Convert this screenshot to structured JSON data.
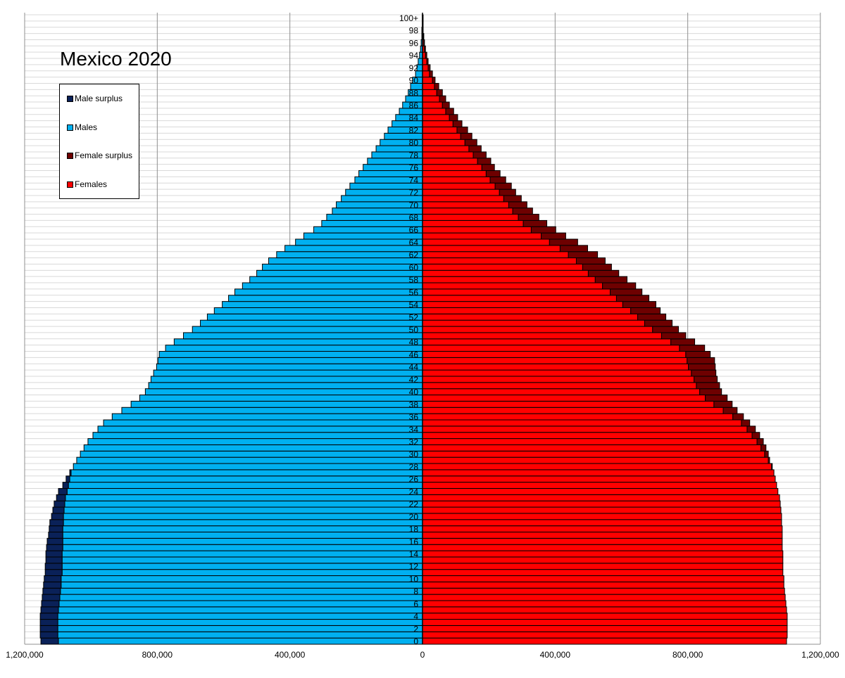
{
  "chart_data": {
    "type": "bar",
    "subtype": "population-pyramid",
    "title": "Mexico 2020",
    "age_labels_shown": [
      "0",
      "2",
      "4",
      "6",
      "8",
      "10",
      "12",
      "14",
      "16",
      "18",
      "20",
      "22",
      "24",
      "26",
      "28",
      "30",
      "32",
      "34",
      "36",
      "38",
      "40",
      "42",
      "44",
      "46",
      "48",
      "50",
      "52",
      "54",
      "56",
      "58",
      "60",
      "62",
      "64",
      "66",
      "68",
      "70",
      "72",
      "74",
      "76",
      "78",
      "80",
      "82",
      "84",
      "86",
      "88",
      "90",
      "92",
      "94",
      "96",
      "98",
      "100+"
    ],
    "x_ticks": [
      "1,200,000",
      "800,000",
      "400,000",
      "0",
      "400,000",
      "800,000",
      "1,200,000"
    ],
    "xlim": [
      -1200000,
      1200000
    ],
    "grid": true,
    "legend_position": "top-left",
    "legend": [
      {
        "label": "Male surplus",
        "color": "#0a2158"
      },
      {
        "label": "Males",
        "color": "#00b0f0"
      },
      {
        "label": "Female surplus",
        "color": "#6e0000"
      },
      {
        "label": "Females",
        "color": "#ff0000"
      }
    ],
    "ages": [
      0,
      1,
      2,
      3,
      4,
      5,
      6,
      7,
      8,
      9,
      10,
      11,
      12,
      13,
      14,
      15,
      16,
      17,
      18,
      19,
      20,
      21,
      22,
      23,
      24,
      25,
      26,
      27,
      28,
      29,
      30,
      31,
      32,
      33,
      34,
      35,
      36,
      37,
      38,
      39,
      40,
      41,
      42,
      43,
      44,
      45,
      46,
      47,
      48,
      49,
      50,
      51,
      52,
      53,
      54,
      55,
      56,
      57,
      58,
      59,
      60,
      61,
      62,
      63,
      64,
      65,
      66,
      67,
      68,
      69,
      70,
      71,
      72,
      73,
      74,
      75,
      76,
      77,
      78,
      79,
      80,
      81,
      82,
      83,
      84,
      85,
      86,
      87,
      88,
      89,
      90,
      91,
      92,
      93,
      94,
      95,
      96,
      97,
      98,
      99,
      "100+"
    ],
    "series": [
      {
        "name": "Males",
        "values": [
          1151000,
          1153000,
          1153000,
          1153000,
          1153000,
          1151000,
          1149000,
          1147000,
          1145000,
          1143000,
          1141000,
          1138000,
          1138000,
          1136000,
          1136000,
          1134000,
          1132000,
          1128000,
          1126000,
          1124000,
          1119000,
          1115000,
          1111000,
          1104000,
          1098000,
          1085000,
          1075000,
          1064000,
          1053000,
          1043000,
          1032000,
          1021000,
          1009000,
          994000,
          979000,
          962000,
          936000,
          907000,
          879000,
          853000,
          836000,
          826000,
          819000,
          811000,
          802000,
          798000,
          794000,
          775000,
          749000,
          721000,
          694000,
          670000,
          649000,
          628000,
          604000,
          585000,
          566000,
          543000,
          521000,
          500000,
          483000,
          464000,
          440000,
          415000,
          383000,
          358000,
          328000,
          304000,
          289000,
          272000,
          260000,
          245000,
          232000,
          219000,
          204000,
          192000,
          179000,
          166000,
          153000,
          140000,
          128000,
          115000,
          104000,
          92000,
          81000,
          70000,
          60000,
          51000,
          43000,
          36000,
          30000,
          21000,
          17000,
          13000,
          9000,
          6000,
          4000,
          2000,
          2000,
          1000,
          1000
        ]
      },
      {
        "name": "Females",
        "values": [
          1098000,
          1100000,
          1100000,
          1100000,
          1100000,
          1098000,
          1096000,
          1094000,
          1092000,
          1090000,
          1090000,
          1087000,
          1087000,
          1087000,
          1087000,
          1085000,
          1085000,
          1085000,
          1085000,
          1083000,
          1083000,
          1081000,
          1079000,
          1077000,
          1072000,
          1068000,
          1064000,
          1060000,
          1055000,
          1047000,
          1043000,
          1036000,
          1028000,
          1017000,
          1004000,
          987000,
          968000,
          949000,
          934000,
          919000,
          902000,
          896000,
          889000,
          885000,
          883000,
          881000,
          868000,
          851000,
          821000,
          794000,
          772000,
          753000,
          734000,
          717000,
          704000,
          683000,
          662000,
          643000,
          617000,
          592000,
          570000,
          551000,
          528000,
          498000,
          468000,
          432000,
          402000,
          375000,
          351000,
          332000,
          315000,
          298000,
          281000,
          268000,
          251000,
          234000,
          217000,
          206000,
          192000,
          177000,
          164000,
          149000,
          136000,
          119000,
          106000,
          94000,
          81000,
          70000,
          60000,
          49000,
          38000,
          30000,
          23000,
          17000,
          13000,
          9000,
          6000,
          4000,
          2000,
          2000,
          2000
        ]
      }
    ]
  }
}
